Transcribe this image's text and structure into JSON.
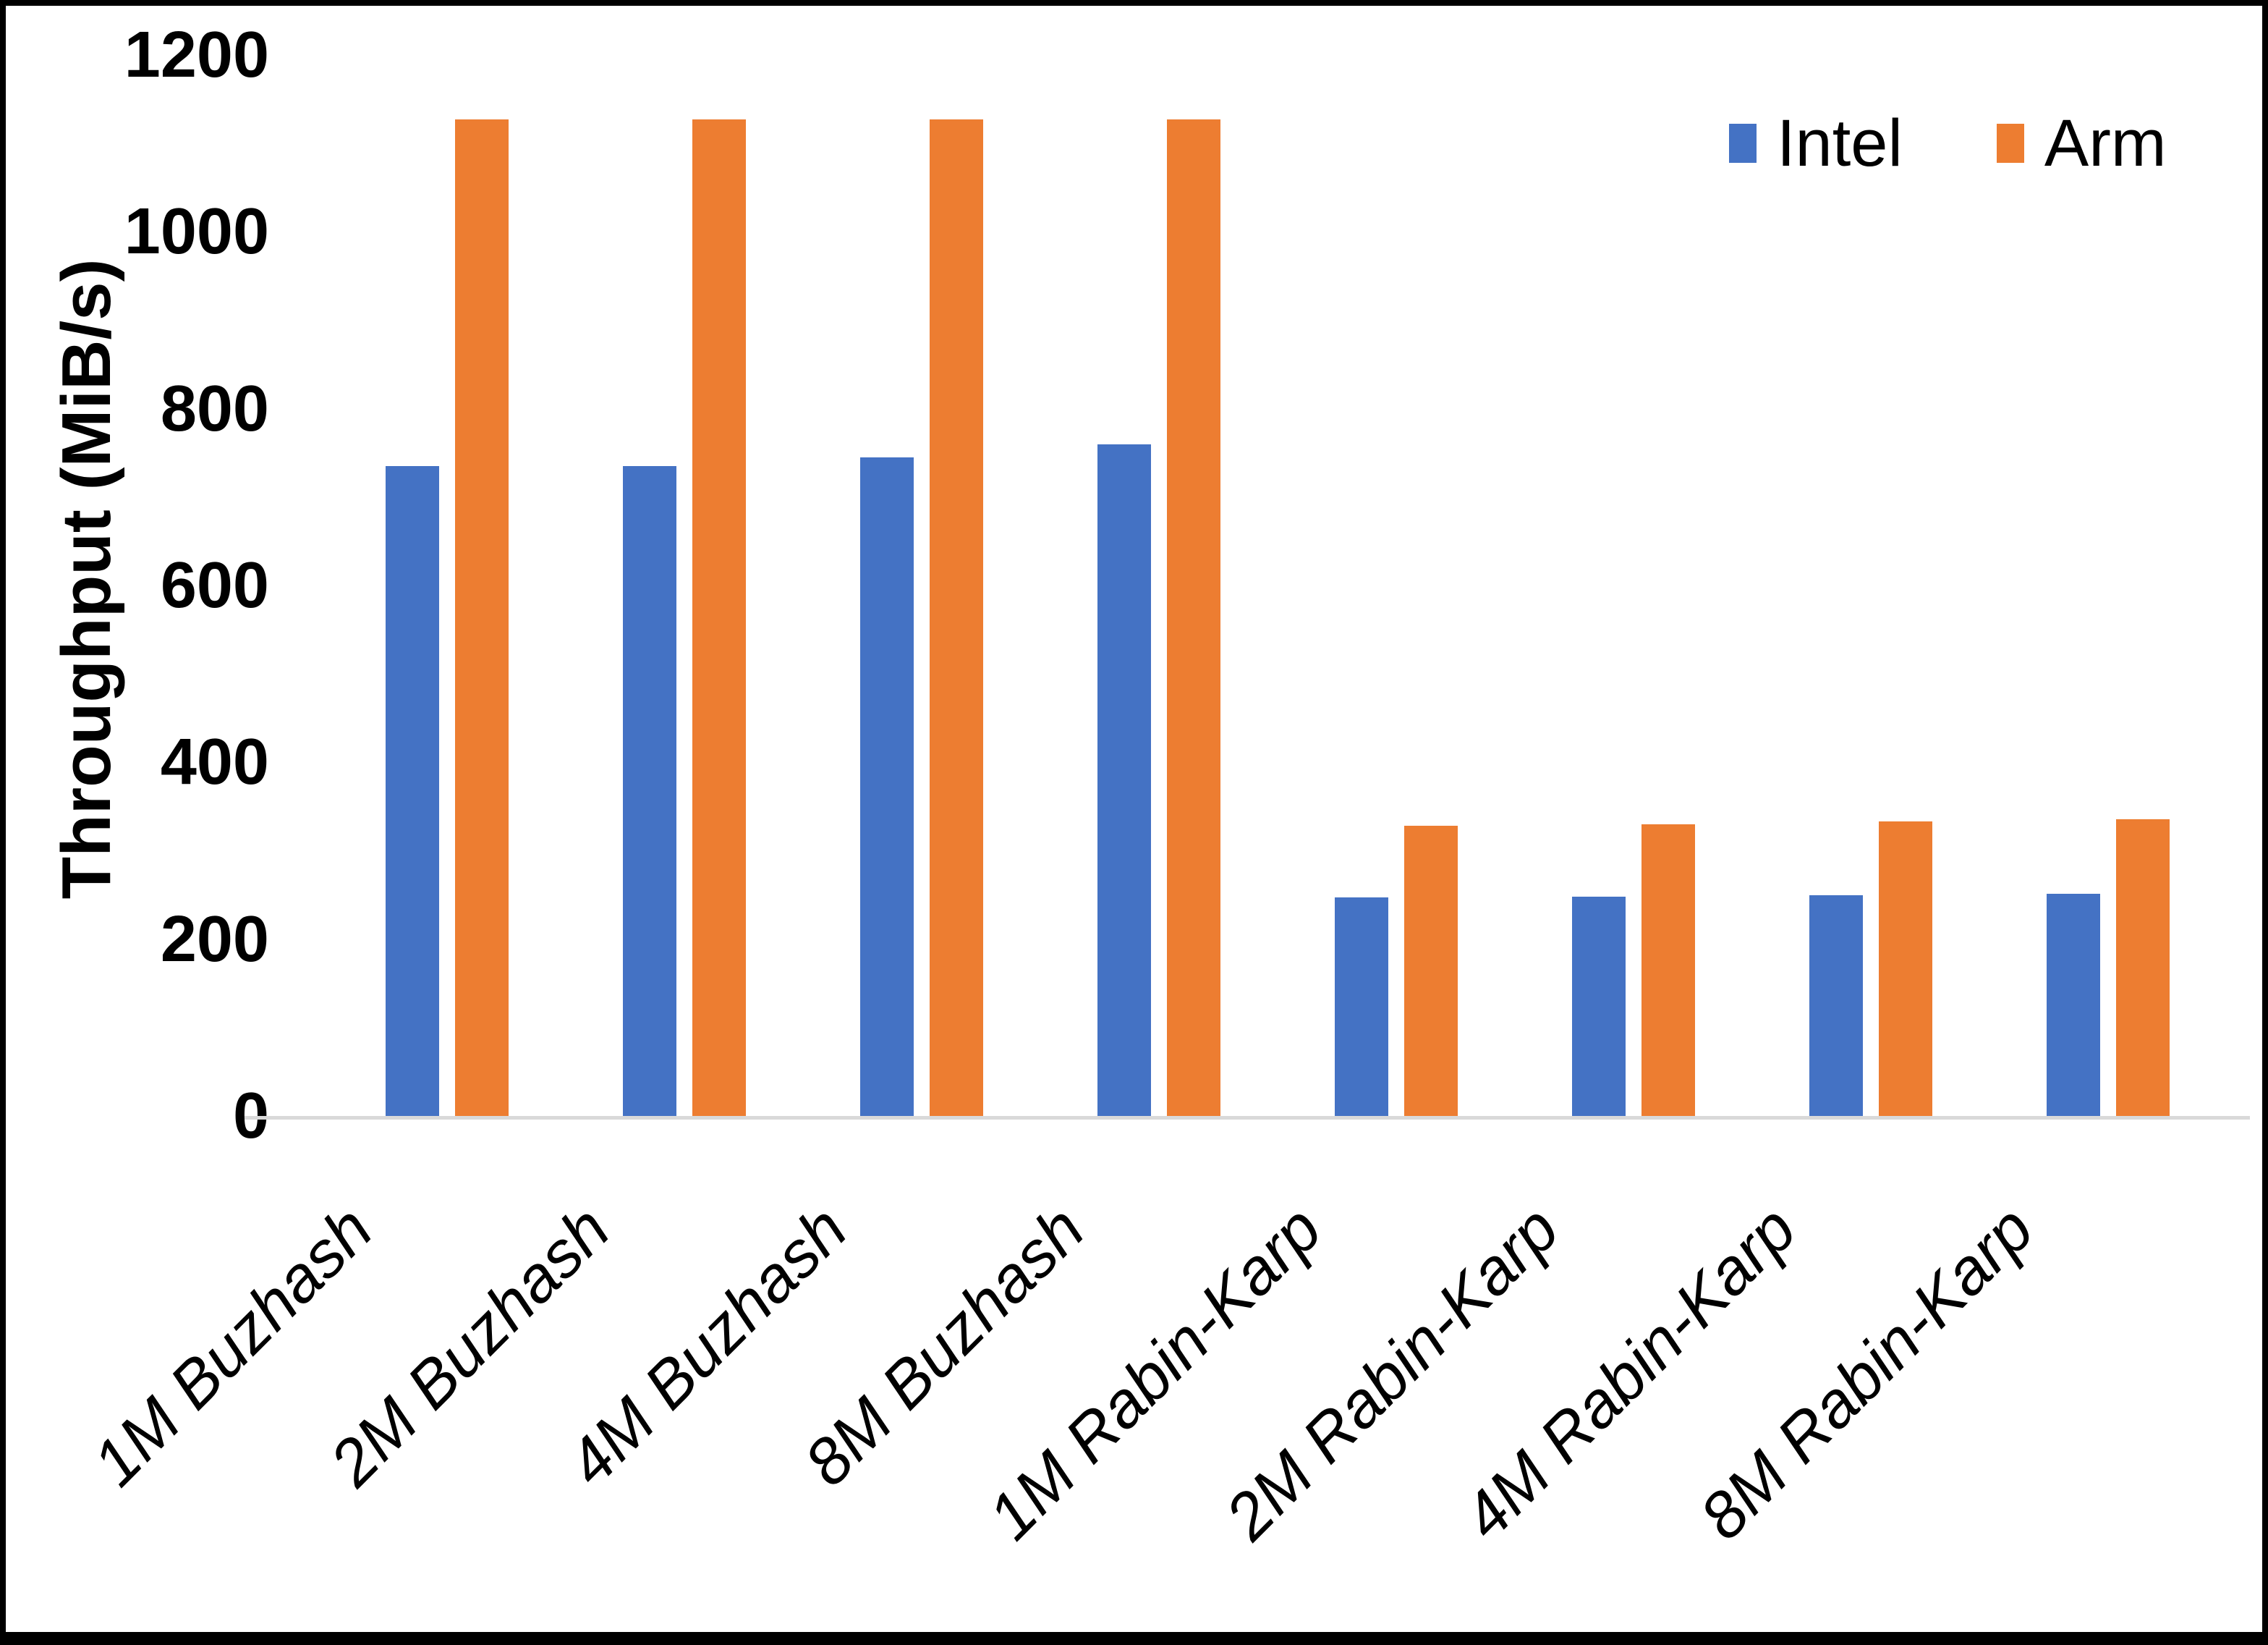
{
  "chart_data": {
    "type": "bar",
    "title": "",
    "categories": [
      "1M Buzhash",
      "2M Buzhash",
      "4M Buzhash",
      "8M Buzhash",
      "1M Rabin-Karp",
      "2M Rabin-Karp",
      "4M Rabin-Karp",
      "8M Rabin-Karp"
    ],
    "series": [
      {
        "name": "Intel",
        "color": "#4472C4",
        "values": [
          735,
          735,
          745,
          760,
          247,
          248,
          250,
          251
        ]
      },
      {
        "name": "Arm",
        "color": "#ED7D31",
        "values": [
          1127,
          1127,
          1127,
          1127,
          328,
          330,
          333,
          336
        ]
      }
    ],
    "xlabel": "",
    "ylabel": "Throughput (MiB/s)",
    "ylim": [
      0,
      1200
    ],
    "yticks": [
      0,
      200,
      400,
      600,
      800,
      1000,
      1200
    ],
    "grid": false,
    "legend_position": "top-right"
  },
  "colors": {
    "intel": "#4472C4",
    "arm": "#ED7D31",
    "axis_line": "#d9d9d9",
    "text": "#000000",
    "frame": "#000000",
    "background": "#ffffff"
  }
}
